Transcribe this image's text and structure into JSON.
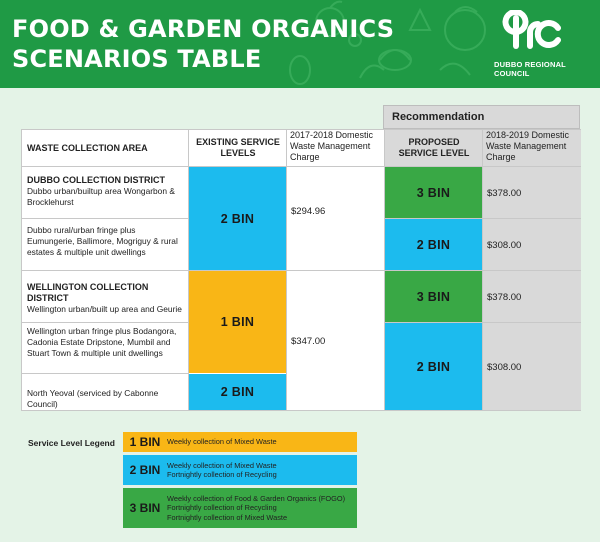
{
  "header": {
    "title_line1": "FOOD & GARDEN ORGANICS",
    "title_line2": "SCENARIOS TABLE",
    "org_line1": "DUBBO REGIONAL",
    "org_line2": "COUNCIL"
  },
  "recommendation_label": "Recommendation",
  "columns": {
    "area": "WASTE COLLECTION AREA",
    "existing": "EXISTING SERVICE LEVELS",
    "charge_2017": "2017-2018 Domestic Waste Management Charge",
    "proposed": "PROPOSED SERVICE LEVEL",
    "charge_2018": "2018-2019 Domestic Waste Management Charge"
  },
  "rows": {
    "dubbo_district": "DUBBO COLLECTION DISTRICT",
    "dubbo_urban": "Dubbo urban/builtup area Wongarbon & Brocklehurst",
    "dubbo_rural": "Dubbo rural/urban fringe plus Eumungerie, Ballimore, Mogriguy & rural estates & multiple unit dwellings",
    "wellington_district": "WELLINGTON COLLECTION DISTRICT",
    "wellington_urban": "Wellington urban/built up area and Geurie",
    "wellington_fringe": "Wellington urban fringe plus Bodangora, Cadonia Estate Dripstone, Mumbil and Stuart Town & multiple unit dwellings",
    "north_yeoval": "North Yeoval (serviced by Cabonne Council)"
  },
  "existing": {
    "dubbo": "2 BIN",
    "wellington": "1 BIN",
    "north_yeoval": "2 BIN"
  },
  "charge_2017": {
    "dubbo": "$294.96",
    "wellington": "$347.00"
  },
  "proposed": {
    "dubbo_urban": "3 BIN",
    "dubbo_rural": "2 BIN",
    "wellington_urban": "3 BIN",
    "wellington_rest": "2 BIN"
  },
  "charge_2018": {
    "dubbo_urban": "$378.00",
    "dubbo_rural": "$308.00",
    "wellington_urban": "$378.00",
    "wellington_rest": "$308.00"
  },
  "legend": {
    "title": "Service Level Legend",
    "one_bin": {
      "label": "1 BIN",
      "line1": "Weekly collection of Mixed Waste"
    },
    "two_bin": {
      "label": "2 BIN",
      "line1": "Weekly collection of Mixed Waste",
      "line2": "Fortnightly collection of Recycling"
    },
    "three_bin": {
      "label": "3 BIN",
      "line1": "Weekly collection of Food & Garden Organics (FOGO)",
      "line2": "Fortnightly collection of Recycling",
      "line3": "Fortnightly collection of Mixed Waste"
    }
  },
  "colors": {
    "header_green": "#1f9a45",
    "blue": "#1cbbee",
    "green": "#39a845",
    "orange": "#f9b616",
    "grey": "#d9d9d9"
  }
}
